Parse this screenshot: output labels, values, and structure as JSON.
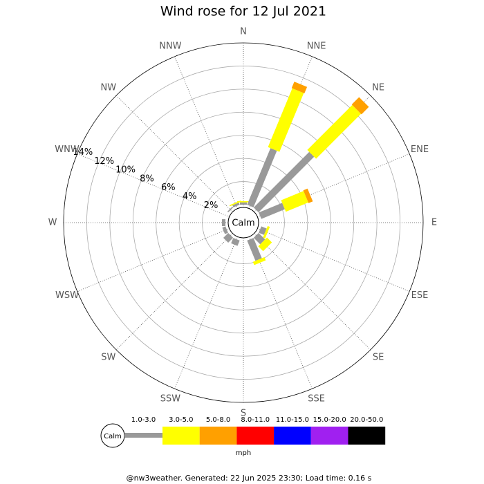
{
  "chart_data": {
    "type": "windrose",
    "title": "Wind rose for 12 Jul 2021",
    "categories": [
      "N",
      "NNE",
      "NE",
      "ENE",
      "E",
      "ESE",
      "SE",
      "SSE",
      "S",
      "SSW",
      "SW",
      "WSW",
      "W",
      "WNW",
      "NW",
      "NNW"
    ],
    "series": [
      {
        "name": "1.0-3.0",
        "color": "#999999",
        "values": [
          0.2,
          5.3,
          6.8,
          2.2,
          0,
          0.5,
          0.8,
          1.9,
          0,
          0.5,
          0.6,
          0.3,
          0.3,
          0,
          0.1,
          0.2
        ]
      },
      {
        "name": "3.0-5.0",
        "color": "#ffff00",
        "values": [
          0.1,
          5.5,
          5.5,
          2.1,
          0,
          0.2,
          0.6,
          0.3,
          0,
          0,
          0,
          0,
          0,
          0,
          0,
          0.1
        ]
      },
      {
        "name": "5.0-8.0",
        "color": "#ffa000",
        "values": [
          0,
          0.6,
          0.9,
          0.4,
          0,
          0,
          0,
          0,
          0,
          0,
          0,
          0,
          0,
          0,
          0,
          0
        ]
      },
      {
        "name": "8.0-11.0",
        "color": "#ff0000",
        "values": [
          0,
          0,
          0,
          0,
          0,
          0,
          0,
          0,
          0,
          0,
          0,
          0,
          0,
          0,
          0,
          0
        ]
      },
      {
        "name": "11.0-15.0",
        "color": "#0000ff",
        "values": [
          0,
          0,
          0,
          0,
          0,
          0,
          0,
          0,
          0,
          0,
          0,
          0,
          0,
          0,
          0,
          0
        ]
      },
      {
        "name": "15.0-20.0",
        "color": "#a020f0",
        "values": [
          0,
          0,
          0,
          0,
          0,
          0,
          0,
          0,
          0,
          0,
          0,
          0,
          0,
          0,
          0,
          0
        ]
      },
      {
        "name": "20.0-50.0",
        "color": "#000000",
        "values": [
          0,
          0,
          0,
          0,
          0,
          0,
          0,
          0,
          0,
          0,
          0,
          0,
          0,
          0,
          0,
          0
        ]
      }
    ],
    "ylim": [
      0,
      14
    ],
    "yticks": [
      {
        "value": 2,
        "label": "2%"
      },
      {
        "value": 4,
        "label": "4%"
      },
      {
        "value": 6,
        "label": "6%"
      },
      {
        "value": 8,
        "label": "8%"
      },
      {
        "value": 10,
        "label": "10%"
      },
      {
        "value": 12,
        "label": "12%"
      },
      {
        "value": 14,
        "label": "14%"
      }
    ],
    "calm_label": "Calm",
    "legend_calm_label": "Calm",
    "units": "mph",
    "footer": "@nw3weather. Generated: 22 Jun 2025 23:30; Load time: 0.16 s"
  }
}
